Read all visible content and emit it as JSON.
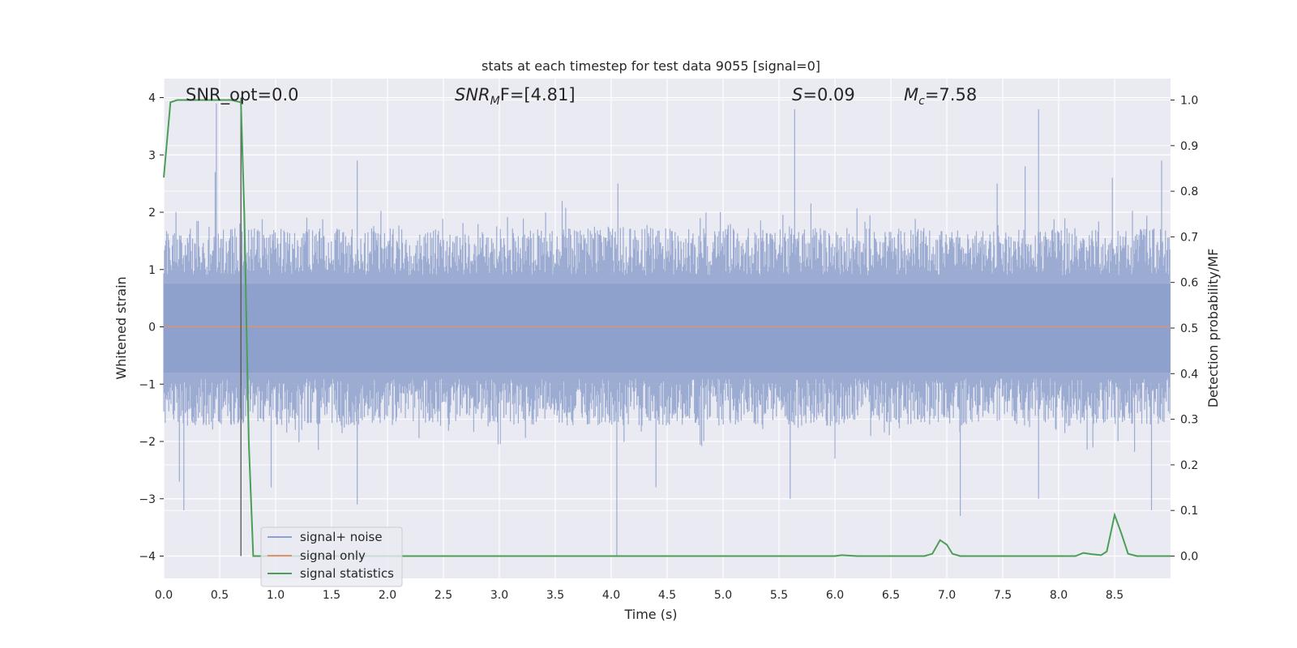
{
  "chart_data": {
    "type": "line",
    "title": "stats at each timestep for test data 9055 [signal=0]",
    "xlabel": "Time (s)",
    "ylabel_left": "Whitened strain",
    "ylabel_right": "Detection probability/MF",
    "xlim": [
      0.0,
      9.0
    ],
    "ylim_left": [
      -4.4,
      4.3
    ],
    "ylim_right": [
      -0.05,
      1.03
    ],
    "x_ticks": [
      "0.0",
      "0.5",
      "1.0",
      "1.5",
      "2.0",
      "2.5",
      "3.0",
      "3.5",
      "4.0",
      "4.5",
      "5.0",
      "5.5",
      "6.0",
      "6.5",
      "7.0",
      "7.5",
      "8.0",
      "8.5"
    ],
    "y_ticks_left": [
      "4",
      "3",
      "2",
      "1",
      "0",
      "−1",
      "−2",
      "−3",
      "−4"
    ],
    "y_ticks_right": [
      "1.0",
      "0.9",
      "0.8",
      "0.7",
      "0.6",
      "0.5",
      "0.4",
      "0.3",
      "0.2",
      "0.1",
      "0.0"
    ],
    "grid": true,
    "legend_position": "lower-left",
    "annotations": {
      "snr_opt": "SNR_opt=0.0",
      "snr_mf_main": "SNR",
      "snr_mf_sub": "M",
      "snr_mf_rest": "F=[4.81]",
      "s_main": "S",
      "s_rest": "=0.09",
      "mc_main": "M",
      "mc_sub": "c",
      "mc_rest": "=7.58"
    },
    "marker_line_x": 0.69,
    "series": [
      {
        "name": "signal+ noise",
        "color": "#8da0cb",
        "axis": "left",
        "description_envelope": {
          "upper_typical": 1.5,
          "lower_typical": -1.5,
          "spikes": [
            [
              0.47,
              3.9
            ],
            [
              0.46,
              2.7
            ],
            [
              0.68,
              1.8
            ],
            [
              0.14,
              -2.7
            ],
            [
              0.18,
              -3.2
            ],
            [
              0.96,
              -2.8
            ],
            [
              1.73,
              2.9
            ],
            [
              1.73,
              -3.1
            ],
            [
              4.05,
              -4.0
            ],
            [
              4.06,
              2.5
            ],
            [
              4.4,
              -2.8
            ],
            [
              5.64,
              3.8
            ],
            [
              5.6,
              -3.0
            ],
            [
              6.0,
              -2.3
            ],
            [
              7.12,
              -3.3
            ],
            [
              7.45,
              2.5
            ],
            [
              7.7,
              2.8
            ],
            [
              7.82,
              3.8
            ],
            [
              7.82,
              -3.0
            ],
            [
              8.48,
              2.6
            ],
            [
              8.83,
              -3.2
            ],
            [
              8.92,
              2.9
            ]
          ]
        }
      },
      {
        "name": "signal only",
        "color": "#e0926c",
        "axis": "left",
        "x": [
          0.0,
          9.0
        ],
        "y": [
          0.0,
          0.0
        ]
      },
      {
        "name": "signal statistics",
        "color": "#4a9e55",
        "axis": "right",
        "x": [
          0.0,
          0.06,
          0.12,
          0.2,
          0.4,
          0.6,
          0.69,
          0.72,
          0.76,
          0.8,
          1.0,
          2.0,
          3.0,
          4.0,
          5.0,
          6.0,
          6.06,
          6.2,
          6.8,
          6.87,
          6.94,
          7.0,
          7.05,
          7.12,
          7.2,
          7.5,
          8.0,
          8.15,
          8.22,
          8.3,
          8.38,
          8.43,
          8.5,
          8.56,
          8.62,
          8.7,
          9.0
        ],
        "y": [
          0.83,
          0.995,
          1.0,
          1.0,
          1.0,
          1.0,
          0.995,
          0.75,
          0.25,
          0.0,
          0.0,
          0.0,
          0.0,
          0.0,
          0.0,
          0.0,
          0.002,
          0.0,
          0.0,
          0.005,
          0.035,
          0.025,
          0.005,
          0.0,
          0.0,
          0.0,
          0.0,
          0.0,
          0.007,
          0.004,
          0.002,
          0.01,
          0.09,
          0.05,
          0.005,
          0.0,
          0.0
        ]
      }
    ]
  }
}
